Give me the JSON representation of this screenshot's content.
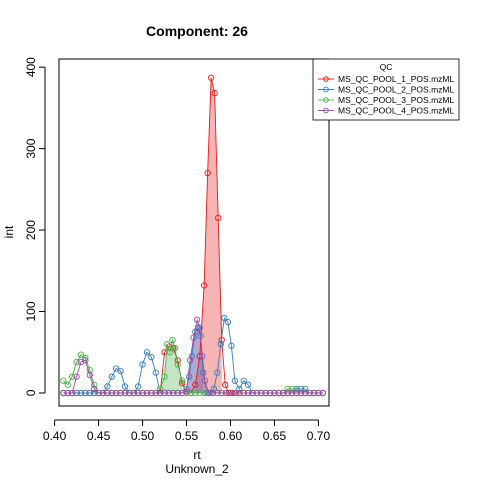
{
  "chart_data": {
    "type": "line",
    "title": "Component: 26",
    "xlabel": "rt",
    "xlabel2": "Unknown_2",
    "ylabel": "int",
    "xlim": [
      0.405,
      0.712
    ],
    "ylim": [
      -16,
      410
    ],
    "xticks": [
      0.4,
      0.45,
      0.5,
      0.55,
      0.6,
      0.65,
      0.7
    ],
    "xtick_labels": [
      "0.40",
      "0.45",
      "0.50",
      "0.55",
      "0.60",
      "0.65",
      "0.70"
    ],
    "yticks": [
      0,
      100,
      200,
      300,
      400
    ],
    "ytick_labels": [
      "0",
      "100",
      "200",
      "300",
      "400"
    ],
    "grid": false,
    "legend": {
      "title": "QC",
      "placement": "top-right"
    },
    "series": [
      {
        "name": "MS_QC_POOL_1_POS.mzML",
        "color": "#E41A1C",
        "fill": "rgba(228,26,28,0.33)",
        "marker": "circle",
        "fill_range": [
          0.556,
          0.592
        ],
        "x": [
          0.41,
          0.415,
          0.42,
          0.425,
          0.43,
          0.435,
          0.44,
          0.445,
          0.45,
          0.455,
          0.46,
          0.465,
          0.47,
          0.475,
          0.48,
          0.485,
          0.49,
          0.495,
          0.5,
          0.505,
          0.51,
          0.515,
          0.52,
          0.525,
          0.53,
          0.535,
          0.54,
          0.545,
          0.55,
          0.555,
          0.56,
          0.565,
          0.57,
          0.574,
          0.578,
          0.582,
          0.586,
          0.59,
          0.594,
          0.598,
          0.602,
          0.606,
          0.61,
          0.615,
          0.62,
          0.625,
          0.63,
          0.635,
          0.64,
          0.645,
          0.65,
          0.655,
          0.66,
          0.665,
          0.67,
          0.675,
          0.68,
          0.685,
          0.69,
          0.695,
          0.7,
          0.705
        ],
        "y": [
          0,
          0,
          0,
          0,
          0,
          0,
          0,
          0,
          0,
          0,
          0,
          0,
          0,
          0,
          0,
          0,
          0,
          0,
          0,
          0,
          0,
          0,
          0,
          50,
          57,
          55,
          40,
          12,
          0,
          0,
          10,
          45,
          132,
          270,
          387,
          368,
          215,
          65,
          10,
          0,
          0,
          0,
          0,
          0,
          0,
          0,
          0,
          0,
          0,
          0,
          0,
          0,
          0,
          0,
          0,
          0,
          0,
          0,
          0,
          0,
          0,
          0
        ]
      },
      {
        "name": "MS_QC_POOL_2_POS.mzML",
        "color": "#377EB8",
        "fill": "rgba(55,126,184,0.33)",
        "marker": "circle",
        "fill_range": [
          0.552,
          0.569
        ],
        "x": [
          0.41,
          0.415,
          0.42,
          0.425,
          0.43,
          0.435,
          0.44,
          0.445,
          0.45,
          0.455,
          0.46,
          0.465,
          0.47,
          0.475,
          0.48,
          0.485,
          0.49,
          0.495,
          0.5,
          0.505,
          0.51,
          0.515,
          0.52,
          0.525,
          0.53,
          0.535,
          0.54,
          0.545,
          0.55,
          0.553,
          0.556,
          0.56,
          0.563,
          0.566,
          0.569,
          0.573,
          0.577,
          0.581,
          0.585,
          0.589,
          0.593,
          0.597,
          0.601,
          0.605,
          0.61,
          0.615,
          0.62,
          0.625,
          0.63,
          0.635,
          0.64,
          0.645,
          0.65,
          0.655,
          0.66,
          0.665,
          0.67,
          0.675,
          0.68,
          0.685,
          0.69,
          0.695,
          0.7,
          0.705
        ],
        "y": [
          0,
          0,
          0,
          0,
          0,
          0,
          0,
          0,
          0,
          0,
          8,
          20,
          30,
          27,
          8,
          0,
          0,
          8,
          35,
          50,
          44,
          25,
          0,
          0,
          0,
          0,
          0,
          0,
          5,
          20,
          45,
          75,
          80,
          70,
          25,
          0,
          0,
          5,
          25,
          60,
          92,
          87,
          58,
          15,
          5,
          15,
          10,
          0,
          0,
          0,
          0,
          0,
          0,
          0,
          0,
          0,
          0,
          5,
          5,
          5,
          0,
          0,
          0,
          0
        ]
      },
      {
        "name": "MS_QC_POOL_3_POS.mzML",
        "color": "#4DAF4A",
        "fill": "rgba(77,175,74,0.33)",
        "marker": "circle",
        "fill_range": [
          0.52,
          0.545
        ],
        "x": [
          0.41,
          0.415,
          0.42,
          0.425,
          0.43,
          0.435,
          0.44,
          0.445,
          0.45,
          0.455,
          0.46,
          0.465,
          0.47,
          0.475,
          0.48,
          0.485,
          0.49,
          0.495,
          0.5,
          0.505,
          0.51,
          0.515,
          0.52,
          0.525,
          0.528,
          0.531,
          0.534,
          0.537,
          0.54,
          0.545,
          0.55,
          0.555,
          0.56,
          0.565,
          0.57,
          0.575,
          0.58,
          0.585,
          0.59,
          0.595,
          0.6,
          0.605,
          0.61,
          0.615,
          0.62,
          0.625,
          0.63,
          0.635,
          0.64,
          0.645,
          0.65,
          0.655,
          0.66,
          0.665,
          0.67,
          0.675,
          0.68,
          0.685,
          0.69,
          0.695,
          0.7,
          0.705
        ],
        "y": [
          15,
          10,
          20,
          38,
          47,
          43,
          28,
          10,
          0,
          0,
          0,
          0,
          0,
          0,
          0,
          0,
          0,
          0,
          0,
          0,
          0,
          0,
          5,
          20,
          60,
          50,
          65,
          55,
          35,
          15,
          0,
          0,
          0,
          0,
          0,
          0,
          0,
          0,
          0,
          0,
          0,
          0,
          0,
          0,
          0,
          0,
          0,
          0,
          0,
          0,
          0,
          0,
          0,
          5,
          5,
          3,
          0,
          0,
          0,
          0,
          0,
          0
        ]
      },
      {
        "name": "MS_QC_POOL_4_POS.mzML",
        "color": "#984EA3",
        "fill": "rgba(152,78,163,0.33)",
        "marker": "circle",
        "fill_range": [
          0.55,
          0.573
        ],
        "x": [
          0.41,
          0.415,
          0.42,
          0.425,
          0.43,
          0.435,
          0.44,
          0.445,
          0.45,
          0.455,
          0.46,
          0.465,
          0.47,
          0.475,
          0.48,
          0.485,
          0.49,
          0.495,
          0.5,
          0.505,
          0.51,
          0.515,
          0.52,
          0.525,
          0.53,
          0.535,
          0.54,
          0.545,
          0.55,
          0.554,
          0.558,
          0.562,
          0.565,
          0.568,
          0.571,
          0.575,
          0.58,
          0.585,
          0.59,
          0.595,
          0.6,
          0.605,
          0.61,
          0.615,
          0.62,
          0.625,
          0.63,
          0.635,
          0.64,
          0.645,
          0.65,
          0.655,
          0.66,
          0.665,
          0.67,
          0.675,
          0.68,
          0.685,
          0.69,
          0.695,
          0.7,
          0.705
        ],
        "y": [
          0,
          0,
          0,
          20,
          38,
          40,
          22,
          5,
          0,
          0,
          0,
          0,
          0,
          0,
          0,
          0,
          0,
          0,
          0,
          0,
          0,
          0,
          0,
          0,
          0,
          0,
          0,
          0,
          2,
          40,
          68,
          90,
          80,
          45,
          15,
          0,
          0,
          0,
          0,
          0,
          0,
          0,
          0,
          0,
          0,
          0,
          0,
          0,
          0,
          0,
          0,
          0,
          0,
          0,
          0,
          0,
          0,
          0,
          0,
          0,
          0,
          0
        ]
      }
    ]
  }
}
